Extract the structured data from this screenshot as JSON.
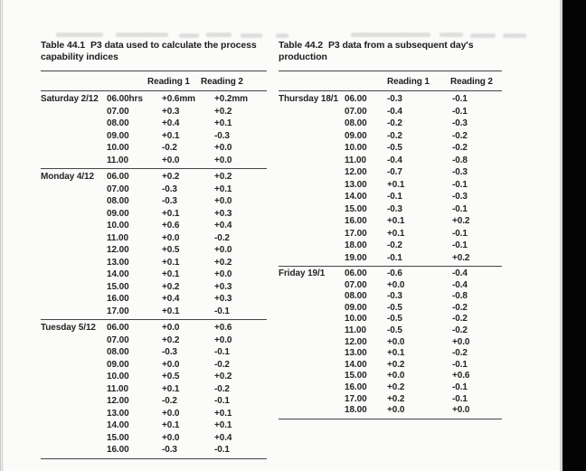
{
  "tables": [
    {
      "label": "Table 44.1",
      "caption": "P3 data used to calculate the process capability indices",
      "col_headers": [
        "Reading 1",
        "Reading 2"
      ],
      "groups": [
        {
          "day": "Saturday 2/12",
          "rows": [
            [
              "06.00hrs",
              "+0.6mm",
              "+0.2mm"
            ],
            [
              "07.00",
              "+0.3",
              "+0.2"
            ],
            [
              "08.00",
              "+0.4",
              "+0.1"
            ],
            [
              "09.00",
              "+0.1",
              "-0.3"
            ],
            [
              "10.00",
              "-0.2",
              "+0.0"
            ],
            [
              "11.00",
              "+0.0",
              "+0.0"
            ]
          ]
        },
        {
          "day": "Monday 4/12",
          "rows": [
            [
              "06.00",
              "+0.2",
              "+0.2"
            ],
            [
              "07.00",
              "-0.3",
              "+0.1"
            ],
            [
              "08.00",
              "-0.3",
              "+0.0"
            ],
            [
              "09.00",
              "+0.1",
              "+0.3"
            ],
            [
              "10.00",
              "+0.6",
              "+0.4"
            ],
            [
              "11.00",
              "+0.0",
              "-0.2"
            ],
            [
              "12.00",
              "+0.5",
              "+0.0"
            ],
            [
              "13.00",
              "+0.1",
              "+0.2"
            ],
            [
              "14.00",
              "+0.1",
              "+0.0"
            ],
            [
              "15.00",
              "+0.2",
              "+0.3"
            ],
            [
              "16.00",
              "+0.4",
              "+0.3"
            ],
            [
              "17.00",
              "+0.1",
              "-0.1"
            ]
          ]
        },
        {
          "day": "Tuesday 5/12",
          "rows": [
            [
              "06.00",
              "+0.0",
              "+0.6"
            ],
            [
              "07.00",
              "+0.2",
              "+0.0"
            ],
            [
              "08.00",
              "-0.3",
              "-0.1"
            ],
            [
              "09.00",
              "+0.0",
              "-0.2"
            ],
            [
              "10.00",
              "+0.5",
              "+0.2"
            ],
            [
              "11.00",
              "+0.1",
              "-0.2"
            ],
            [
              "12.00",
              "-0.2",
              "-0.1"
            ],
            [
              "13.00",
              "+0.0",
              "+0.1"
            ],
            [
              "14.00",
              "+0.1",
              "+0.1"
            ],
            [
              "15.00",
              "+0.0",
              "+0.4"
            ],
            [
              "16.00",
              "-0.3",
              "-0.1"
            ]
          ]
        }
      ]
    },
    {
      "label": "Table 44.2",
      "caption": "P3 data from a subsequent day's production",
      "col_headers": [
        "Reading 1",
        "Reading 2"
      ],
      "groups": [
        {
          "day": "Thursday 18/1",
          "rows": [
            [
              "06.00",
              "-0.3",
              "-0.1"
            ],
            [
              "07.00",
              "-0.4",
              "-0.1"
            ],
            [
              "08.00",
              "-0.2",
              "-0.3"
            ],
            [
              "09.00",
              "-0.2",
              "-0.2"
            ],
            [
              "10.00",
              "-0.5",
              "-0.2"
            ],
            [
              "11.00",
              "-0.4",
              "-0.8"
            ],
            [
              "12.00",
              "-0.7",
              "-0.3"
            ],
            [
              "13.00",
              "+0.1",
              "-0.1"
            ],
            [
              "14.00",
              "-0.1",
              "-0.3"
            ],
            [
              "15.00",
              "-0.3",
              "-0.1"
            ],
            [
              "16.00",
              "+0.1",
              "+0.2"
            ],
            [
              "17.00",
              "+0.1",
              "-0.1"
            ],
            [
              "18.00",
              "-0.2",
              "-0.1"
            ],
            [
              "19.00",
              "-0.1",
              "+0.2"
            ]
          ]
        },
        {
          "day": "Friday 19/1",
          "rows": [
            [
              "06.00",
              "-0.6",
              "-0.4"
            ],
            [
              "07.00",
              "+0.0",
              "-0.4"
            ],
            [
              "08.00",
              "-0.3",
              "-0.8"
            ],
            [
              "09.00",
              "-0.5",
              "-0.2"
            ],
            [
              "10.00",
              "-0.5",
              "-0.2"
            ],
            [
              "11.00",
              "-0.5",
              "-0.2"
            ],
            [
              "12.00",
              "+0.0",
              "+0.0"
            ],
            [
              "13.00",
              "+0.1",
              "-0.2"
            ],
            [
              "14.00",
              "+0.2",
              "-0.1"
            ],
            [
              "15.00",
              "+0.0",
              "+0.6"
            ],
            [
              "16.00",
              "+0.2",
              "-0.1"
            ],
            [
              "17.00",
              "+0.2",
              "-0.1"
            ],
            [
              "18.00",
              "+0.0",
              "+0.0"
            ]
          ]
        }
      ]
    }
  ],
  "colors": {
    "page_background": "#fbfbfa",
    "text": "#222222",
    "rule": "#454545",
    "scan_bar": "#040404"
  }
}
